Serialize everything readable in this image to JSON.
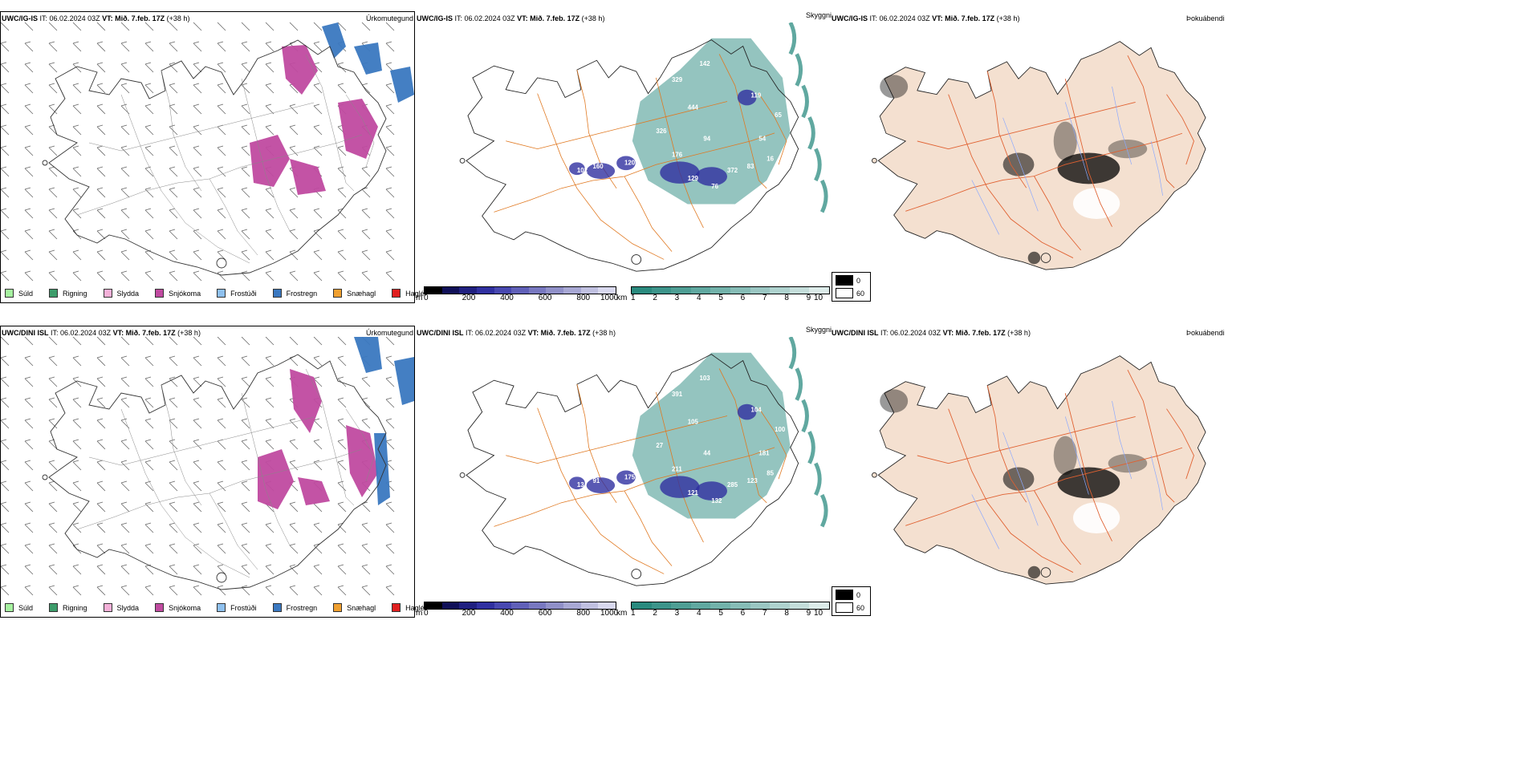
{
  "panels": [
    {
      "model": "UWC/IG-IS",
      "it_label": "IT:",
      "it_value": "06.02.2024 03Z",
      "vt_label": "VT:",
      "vt_value": "Mið. 7.feb. 17Z",
      "lead": "(+38 h)",
      "titles": {
        "precip": "Úrkomutegund",
        "vis": "Skyggni",
        "fog": "Þokuábendi"
      },
      "vis_labels": [
        "329",
        "444",
        "94",
        "176",
        "372",
        "58",
        "129",
        "120",
        "326",
        "142",
        "119",
        "54",
        "65",
        "76",
        "160",
        "83",
        "102",
        "16"
      ]
    },
    {
      "model": "UWC/DINI ISL",
      "it_label": "IT:",
      "it_value": "06.02.2024 03Z",
      "vt_label": "VT:",
      "vt_value": "Mið. 7.feb. 17Z",
      "lead": "(+38 h)",
      "titles": {
        "precip": "Úrkomutegund",
        "vis": "Skyggni",
        "fog": "Þokuábendi"
      },
      "vis_labels": [
        "391",
        "105",
        "44",
        "211",
        "285",
        "15",
        "121",
        "175",
        "27",
        "103",
        "104",
        "181",
        "100",
        "132",
        "91",
        "123",
        "13",
        "85"
      ]
    }
  ],
  "precip_legend": [
    {
      "label": "Súld",
      "color": "#a6f2a0"
    },
    {
      "label": "Rigning",
      "color": "#3c9c6a"
    },
    {
      "label": "Slydda",
      "color": "#f4b0d8"
    },
    {
      "label": "Snjókoma",
      "color": "#c04aa0"
    },
    {
      "label": "Frostúði",
      "color": "#8ec0ee"
    },
    {
      "label": "Frostregn",
      "color": "#3a78c0"
    },
    {
      "label": "Snæhagl",
      "color": "#f0a030"
    },
    {
      "label": "Haglél",
      "color": "#e02020"
    }
  ],
  "ceiling_scale": {
    "unit": "m",
    "ticks": [
      "0",
      "200",
      "400",
      "600",
      "800",
      "1000"
    ],
    "colors": [
      "#000000",
      "#101058",
      "#202080",
      "#3030a0",
      "#4848b0",
      "#6060b8",
      "#7878c0",
      "#9090c8",
      "#a8a8d4",
      "#c0c0e0",
      "#d8d8ee"
    ]
  },
  "vis_scale": {
    "unit": "km",
    "ticks": [
      "1",
      "2",
      "3",
      "4",
      "5",
      "6",
      "7",
      "8",
      "9",
      "10"
    ],
    "colors": [
      "#2a8a7e",
      "#3c948a",
      "#4e9e94",
      "#60a8a0",
      "#72b2aa",
      "#86bcb6",
      "#9ac6c2",
      "#aed2ce",
      "#c4ddda",
      "#dcebe9"
    ]
  },
  "fog_legend": {
    "values": [
      "0",
      "60"
    ],
    "colors": [
      "#000000",
      "#ffffff"
    ]
  },
  "colors": {
    "land": "#f4e0d0",
    "roads": "#e06030",
    "rivers": "#8aa8ff",
    "coast": "#333333",
    "snow": "#c04aa0",
    "frz": "#3a78c0"
  }
}
